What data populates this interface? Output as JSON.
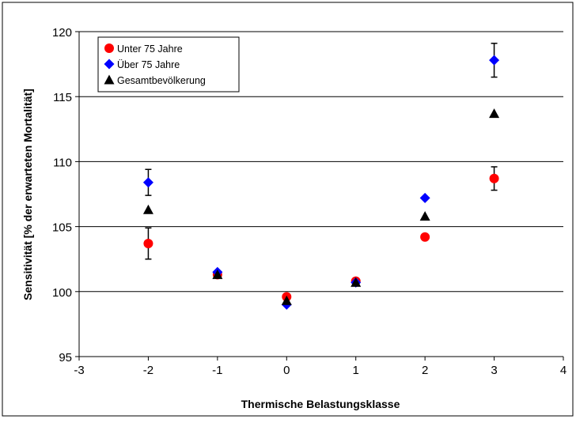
{
  "chart_data": {
    "type": "scatter",
    "title": "",
    "xlabel": "Thermische Belastungsklasse",
    "ylabel": "Sensitivität  [% der erwarteten Mortalität]",
    "xlim": [
      -3,
      4
    ],
    "ylim": [
      95,
      120
    ],
    "x_ticks": [
      "-3",
      "-2",
      "-1",
      "0",
      "1",
      "2",
      "3",
      "4"
    ],
    "y_ticks": [
      "95",
      "100",
      "105",
      "110",
      "115",
      "120"
    ],
    "grid": "horizontal",
    "legend_position": "top-left",
    "series": [
      {
        "name": "Unter 75 Jahre",
        "marker": "circle",
        "color": "#ff0000",
        "points": [
          {
            "x": -2,
            "y": 103.7,
            "err_low": 102.5,
            "err_high": 104.9
          },
          {
            "x": -1,
            "y": 101.3
          },
          {
            "x": 0,
            "y": 99.6
          },
          {
            "x": 1,
            "y": 100.8
          },
          {
            "x": 2,
            "y": 104.2
          },
          {
            "x": 3,
            "y": 108.7,
            "err_low": 107.8,
            "err_high": 109.6
          }
        ]
      },
      {
        "name": "Über 75 Jahre",
        "marker": "diamond",
        "color": "#0000ff",
        "points": [
          {
            "x": -2,
            "y": 108.4,
            "err_low": 107.4,
            "err_high": 109.4
          },
          {
            "x": -1,
            "y": 101.5
          },
          {
            "x": 0,
            "y": 99.0
          },
          {
            "x": 1,
            "y": 100.7
          },
          {
            "x": 2,
            "y": 107.2
          },
          {
            "x": 3,
            "y": 117.8,
            "err_low": 116.5,
            "err_high": 119.1
          }
        ]
      },
      {
        "name": "Gesamtbevölkerung",
        "marker": "triangle",
        "color": "#000000",
        "points": [
          {
            "x": -2,
            "y": 106.3
          },
          {
            "x": -1,
            "y": 101.3
          },
          {
            "x": 0,
            "y": 99.3
          },
          {
            "x": 1,
            "y": 100.7
          },
          {
            "x": 2,
            "y": 105.8
          },
          {
            "x": 3,
            "y": 113.7
          }
        ]
      }
    ]
  }
}
